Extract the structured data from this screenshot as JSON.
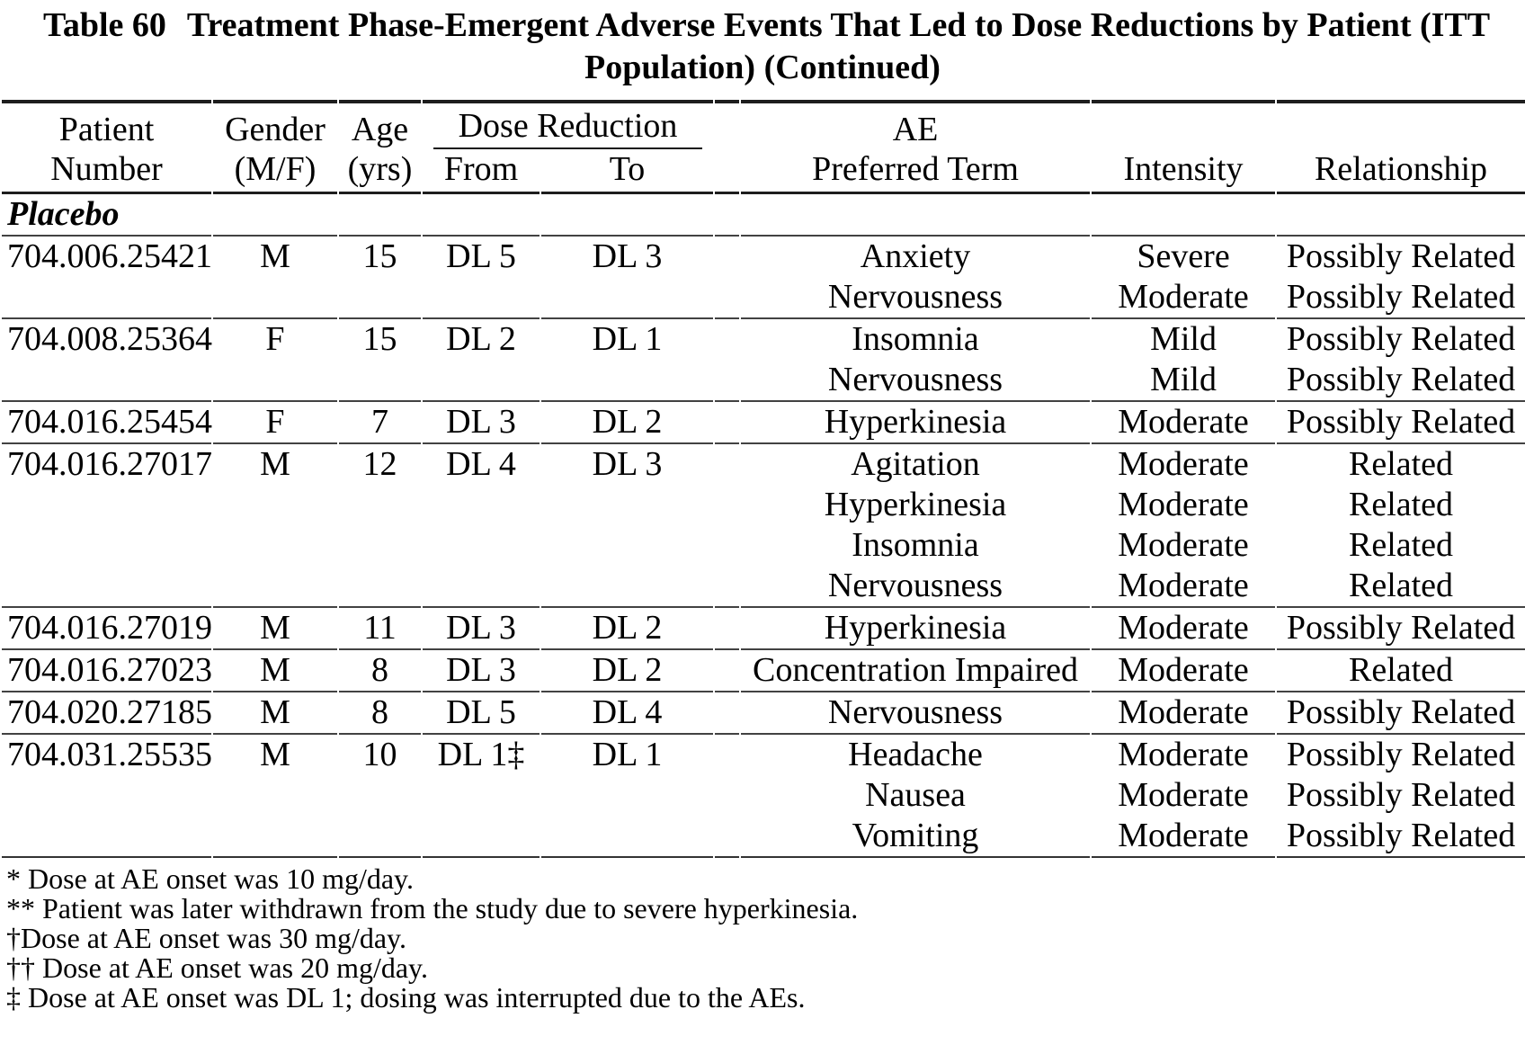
{
  "page": {
    "background": "#ffffff",
    "text_color": "#000000",
    "border_dark": "#1e1e1e",
    "border_row": "#424242"
  },
  "title": {
    "label": "Table 60",
    "line1": "Treatment Phase-Emergent Adverse Events That Led to Dose Reductions by Patient (ITT",
    "line2": "Population) (Continued)"
  },
  "table": {
    "header": {
      "row1": {
        "patient": "Patient",
        "gender": "Gender",
        "age": "Age",
        "dose_reduction": "Dose Reduction",
        "ae": "AE",
        "intensity": "",
        "relationship": ""
      },
      "row2": {
        "patient": "Number",
        "gender": "(M/F)",
        "age": "(yrs)",
        "from": "From",
        "to": "To",
        "ae": "Preferred Term",
        "intensity": "Intensity",
        "relationship": "Relationship"
      }
    },
    "section_label": "Placebo",
    "groups": [
      {
        "patient": "704.006.25421",
        "gender": "M",
        "age": "15",
        "from": "DL 5",
        "to": "DL 3",
        "events": [
          {
            "term": "Anxiety",
            "intensity": "Severe",
            "relationship": "Possibly Related"
          },
          {
            "term": "Nervousness",
            "intensity": "Moderate",
            "relationship": "Possibly Related"
          }
        ]
      },
      {
        "patient": "704.008.25364",
        "gender": "F",
        "age": "15",
        "from": "DL 2",
        "to": "DL 1",
        "events": [
          {
            "term": "Insomnia",
            "intensity": "Mild",
            "relationship": "Possibly Related"
          },
          {
            "term": "Nervousness",
            "intensity": "Mild",
            "relationship": "Possibly Related"
          }
        ]
      },
      {
        "patient": "704.016.25454",
        "gender": "F",
        "age": "7",
        "from": "DL 3",
        "to": "DL 2",
        "events": [
          {
            "term": "Hyperkinesia",
            "intensity": "Moderate",
            "relationship": "Possibly Related"
          }
        ]
      },
      {
        "patient": "704.016.27017",
        "gender": "M",
        "age": "12",
        "from": "DL 4",
        "to": "DL 3",
        "events": [
          {
            "term": "Agitation",
            "intensity": "Moderate",
            "relationship": "Related"
          },
          {
            "term": "Hyperkinesia",
            "intensity": "Moderate",
            "relationship": "Related"
          },
          {
            "term": "Insomnia",
            "intensity": "Moderate",
            "relationship": "Related"
          },
          {
            "term": "Nervousness",
            "intensity": "Moderate",
            "relationship": "Related"
          }
        ]
      },
      {
        "patient": "704.016.27019",
        "gender": "M",
        "age": "11",
        "from": "DL 3",
        "to": "DL 2",
        "events": [
          {
            "term": "Hyperkinesia",
            "intensity": "Moderate",
            "relationship": "Possibly Related"
          }
        ]
      },
      {
        "patient": "704.016.27023",
        "gender": "M",
        "age": "8",
        "from": "DL 3",
        "to": "DL 2",
        "events": [
          {
            "term": "Concentration Impaired",
            "intensity": "Moderate",
            "relationship": "Related"
          }
        ]
      },
      {
        "patient": "704.020.27185",
        "gender": "M",
        "age": "8",
        "from": "DL 5",
        "to": "DL 4",
        "events": [
          {
            "term": "Nervousness",
            "intensity": "Moderate",
            "relationship": "Possibly Related"
          }
        ]
      },
      {
        "patient": "704.031.25535",
        "gender": "M",
        "age": "10",
        "from": "DL 1‡",
        "to": "DL 1",
        "events": [
          {
            "term": "Headache",
            "intensity": "Moderate",
            "relationship": "Possibly Related"
          },
          {
            "term": "Nausea",
            "intensity": "Moderate",
            "relationship": "Possibly Related"
          },
          {
            "term": "Vomiting",
            "intensity": "Moderate",
            "relationship": "Possibly Related"
          }
        ]
      }
    ]
  },
  "footnotes": [
    "* Dose at AE onset was 10 mg/day.",
    "** Patient was later withdrawn from the study due to severe hyperkinesia.",
    "†Dose at AE onset was 30 mg/day.",
    "†† Dose at AE onset was 20 mg/day.",
    "‡ Dose at AE onset was DL 1; dosing was interrupted due to the AEs."
  ]
}
